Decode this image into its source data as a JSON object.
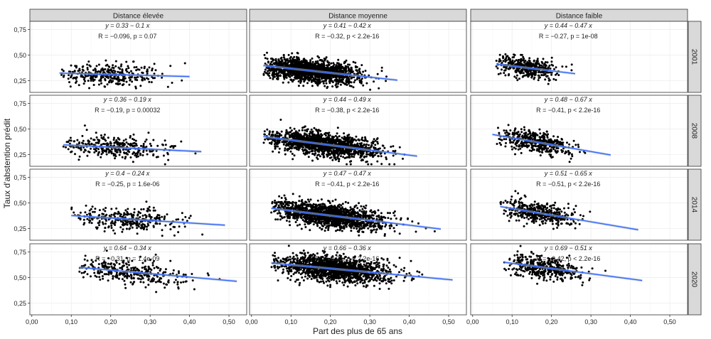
{
  "chart_data": {
    "type": "scatter",
    "title": "",
    "xlabel": "Part des plus de 65 ans",
    "ylabel": "Taux d'abstention prédit",
    "xlim": [
      -0.005,
      0.545
    ],
    "ylim": [
      0.135,
      0.83
    ],
    "x_ticks": [
      0.0,
      0.1,
      0.2,
      0.3,
      0.4,
      0.5
    ],
    "x_tick_labels": [
      "0,00",
      "0,10",
      "0,20",
      "0,30",
      "0,40",
      "0,50"
    ],
    "y_ticks": [
      0.25,
      0.5,
      0.75
    ],
    "y_tick_labels": [
      "0,25",
      "0,50",
      "0,75"
    ],
    "grid": true,
    "colors": {
      "points": "#000000",
      "fit_line": "#3366ff",
      "ci_band": "#9fb4d6",
      "strip_fill": "#d9d9d9"
    },
    "columns": [
      "Distance élevée",
      "Distance moyenne",
      "Distance faible"
    ],
    "rows": [
      "2001",
      "2008",
      "2014",
      "2020"
    ],
    "panels": [
      {
        "row": "2001",
        "column": "Distance élevée",
        "eq": "y = 0.33 − 0.1 x",
        "stat": "R = −0.096, p = 0.07",
        "intercept": 0.33,
        "slope": -0.1,
        "x_range": [
          0.07,
          0.4
        ],
        "n_points": 320,
        "x_center": 0.2,
        "x_sd": 0.065,
        "resid_sd": 0.055
      },
      {
        "row": "2001",
        "column": "Distance moyenne",
        "eq": "y = 0.41 − 0.42 x",
        "stat": "R = −0.32, p < 2.2e-16",
        "intercept": 0.41,
        "slope": -0.42,
        "x_range": [
          0.03,
          0.37
        ],
        "n_points": 1500,
        "x_center": 0.15,
        "x_sd": 0.06,
        "resid_sd": 0.055
      },
      {
        "row": "2001",
        "column": "Distance faible",
        "eq": "y = 0.44 − 0.47 x",
        "stat": "R = −0.27, p = 1e-08",
        "intercept": 0.44,
        "slope": -0.47,
        "x_range": [
          0.06,
          0.26
        ],
        "n_points": 420,
        "x_center": 0.14,
        "x_sd": 0.04,
        "resid_sd": 0.05
      },
      {
        "row": "2008",
        "column": "Distance élevée",
        "eq": "y = 0.36 − 0.19 x",
        "stat": "R = −0.19, p = 0.00032",
        "intercept": 0.36,
        "slope": -0.19,
        "x_range": [
          0.08,
          0.43
        ],
        "n_points": 320,
        "x_center": 0.21,
        "x_sd": 0.065,
        "resid_sd": 0.055
      },
      {
        "row": "2008",
        "column": "Distance moyenne",
        "eq": "y = 0.44 − 0.49 x",
        "stat": "R = −0.38, p < 2.2e-16",
        "intercept": 0.44,
        "slope": -0.49,
        "x_range": [
          0.03,
          0.42
        ],
        "n_points": 1500,
        "x_center": 0.18,
        "x_sd": 0.07,
        "resid_sd": 0.055
      },
      {
        "row": "2008",
        "column": "Distance faible",
        "eq": "y = 0.48 − 0.67 x",
        "stat": "R = −0.41, p < 2.2e-16",
        "intercept": 0.48,
        "slope": -0.67,
        "x_range": [
          0.05,
          0.35
        ],
        "n_points": 420,
        "x_center": 0.16,
        "x_sd": 0.045,
        "resid_sd": 0.05
      },
      {
        "row": "2014",
        "column": "Distance élevée",
        "eq": "y = 0.4 − 0.24 x",
        "stat": "R = −0.25, p = 1.6e-06",
        "intercept": 0.4,
        "slope": -0.24,
        "x_range": [
          0.1,
          0.49
        ],
        "n_points": 320,
        "x_center": 0.24,
        "x_sd": 0.07,
        "resid_sd": 0.055
      },
      {
        "row": "2014",
        "column": "Distance moyenne",
        "eq": "y = 0.47 − 0.47 x",
        "stat": "R = −0.41, p < 2.2e-16",
        "intercept": 0.47,
        "slope": -0.47,
        "x_range": [
          0.05,
          0.48
        ],
        "n_points": 1500,
        "x_center": 0.2,
        "x_sd": 0.07,
        "resid_sd": 0.055
      },
      {
        "row": "2014",
        "column": "Distance faible",
        "eq": "y = 0.51 − 0.65 x",
        "stat": "R = −0.51, p < 2.2e-16",
        "intercept": 0.51,
        "slope": -0.65,
        "x_range": [
          0.07,
          0.42
        ],
        "n_points": 420,
        "x_center": 0.17,
        "x_sd": 0.045,
        "resid_sd": 0.05
      },
      {
        "row": "2020",
        "column": "Distance élevée",
        "eq": "y = 0.64 − 0.34 x",
        "stat": "R = −0.31, p = 1.4e-09",
        "intercept": 0.64,
        "slope": -0.34,
        "x_range": [
          0.12,
          0.52
        ],
        "n_points": 320,
        "x_center": 0.25,
        "x_sd": 0.07,
        "resid_sd": 0.06
      },
      {
        "row": "2020",
        "column": "Distance moyenne",
        "eq": "y = 0.66 − 0.36 x",
        "stat": "R = −0.31, p < 2.2e-16",
        "intercept": 0.66,
        "slope": -0.36,
        "x_range": [
          0.05,
          0.51
        ],
        "n_points": 1500,
        "x_center": 0.21,
        "x_sd": 0.07,
        "resid_sd": 0.06
      },
      {
        "row": "2020",
        "column": "Distance faible",
        "eq": "y = 0.69 − 0.51 x",
        "stat": "R = −0.42, p < 2.2e-16",
        "intercept": 0.69,
        "slope": -0.51,
        "x_range": [
          0.08,
          0.43
        ],
        "n_points": 420,
        "x_center": 0.18,
        "x_sd": 0.05,
        "resid_sd": 0.055
      }
    ]
  }
}
